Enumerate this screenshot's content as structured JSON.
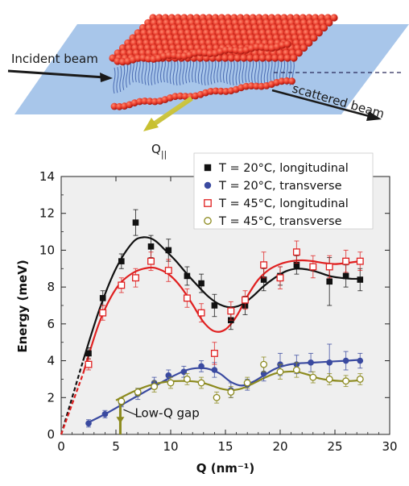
{
  "diagram": {
    "incident_label": "Incident beam",
    "scattered_label": "scattered beam",
    "q_label": "Q",
    "q_subscript": "||"
  },
  "colors": {
    "black": "#111111",
    "blue": "#3a4aa0",
    "red": "#e02020",
    "olive": "#8c8a1e",
    "plot_bg": "#efefef",
    "plane": "#9fc0e8",
    "lipid_head": "#e83a2a",
    "lipid_tail": "#3a5aa8"
  },
  "chart_data": {
    "type": "scatter",
    "xlabel": "Q (nm⁻¹)",
    "ylabel": "Energy (meV)",
    "xlim": [
      0,
      30
    ],
    "ylim": [
      0,
      14
    ],
    "xticks": [
      "0",
      "5",
      "10",
      "15",
      "20",
      "25",
      "30"
    ],
    "yticks": [
      "0",
      "2",
      "4",
      "6",
      "8",
      "10",
      "12",
      "14"
    ],
    "legend_position": "top-right",
    "annotation": "Low-Q gap",
    "annotation_x": 5.4,
    "series": [
      {
        "name": "T = 20°C, longitudinal",
        "color": "#111111",
        "marker": "filled-square",
        "x": [
          2.5,
          3.8,
          5.5,
          6.8,
          8.2,
          9.8,
          11.5,
          12.8,
          14.0,
          15.5,
          16.8,
          18.5,
          20.0,
          21.5,
          24.5,
          26.0,
          27.3
        ],
        "y": [
          4.4,
          7.4,
          9.4,
          11.5,
          10.2,
          10.0,
          8.6,
          8.2,
          7.0,
          6.2,
          7.0,
          8.4,
          8.6,
          9.2,
          8.3,
          8.6,
          8.4
        ],
        "err": [
          0.3,
          0.4,
          0.4,
          0.7,
          0.6,
          0.6,
          0.5,
          0.5,
          0.6,
          0.5,
          0.5,
          0.6,
          0.5,
          0.5,
          1.3,
          0.6,
          0.6
        ],
        "fit_x": [
          0.0,
          2.0,
          3.5,
          5.0,
          6.5,
          7.5,
          8.5,
          9.5,
          10.5,
          11.5,
          12.5,
          13.5,
          14.5,
          15.5,
          16.5,
          17.5,
          18.5,
          19.5,
          20.5,
          21.5,
          22.5,
          23.5,
          24.5,
          25.5,
          26.5,
          27.3
        ],
        "fit_y": [
          0.0,
          4.0,
          6.8,
          9.0,
          10.4,
          10.7,
          10.55,
          10.0,
          9.4,
          8.7,
          8.05,
          7.45,
          7.05,
          6.9,
          7.05,
          7.5,
          8.05,
          8.5,
          8.85,
          9.0,
          8.95,
          8.8,
          8.6,
          8.5,
          8.45,
          8.45
        ],
        "fit_dashed_until": 2.5
      },
      {
        "name": "T = 20°C, transverse",
        "color": "#3a4aa0",
        "marker": "filled-circle",
        "x": [
          2.5,
          4.0,
          5.5,
          7.0,
          8.5,
          9.8,
          11.2,
          12.8,
          14.0,
          15.5,
          17.0,
          18.5,
          20.0,
          21.5,
          22.8,
          24.5,
          26.0,
          27.3
        ],
        "y": [
          0.6,
          1.1,
          1.7,
          2.2,
          2.8,
          3.2,
          3.4,
          3.7,
          3.5,
          2.4,
          2.7,
          3.3,
          3.8,
          3.8,
          3.9,
          3.9,
          4.0,
          4.0
        ],
        "err": [
          0.2,
          0.2,
          0.2,
          0.3,
          0.3,
          0.3,
          0.3,
          0.3,
          0.4,
          0.4,
          0.3,
          0.4,
          0.6,
          0.5,
          0.5,
          1.0,
          0.5,
          0.4
        ],
        "fit_x": [
          2.5,
          4.0,
          5.5,
          7.0,
          8.5,
          10.0,
          11.5,
          12.5,
          13.5,
          14.5,
          15.5,
          16.5,
          17.5,
          18.5,
          19.5,
          20.5,
          21.5,
          23.0,
          24.5,
          26.0,
          27.3
        ],
        "fit_y": [
          0.65,
          1.1,
          1.6,
          2.1,
          2.6,
          3.1,
          3.5,
          3.6,
          3.55,
          3.3,
          2.85,
          2.65,
          2.85,
          3.2,
          3.55,
          3.75,
          3.85,
          3.9,
          3.95,
          4.0,
          4.05
        ]
      },
      {
        "name": "T = 45°C, longitudinal",
        "color": "#e02020",
        "marker": "open-square",
        "x": [
          2.5,
          3.8,
          5.5,
          6.8,
          8.2,
          9.8,
          11.5,
          12.8,
          14.0,
          15.5,
          16.8,
          18.5,
          20.0,
          21.5,
          23.0,
          24.5,
          26.0,
          27.3
        ],
        "y": [
          3.8,
          6.6,
          8.1,
          8.5,
          9.4,
          8.9,
          7.4,
          6.6,
          4.4,
          6.7,
          7.3,
          9.2,
          8.5,
          9.9,
          9.1,
          9.1,
          9.4,
          9.4
        ],
        "err": [
          0.3,
          0.4,
          0.4,
          0.5,
          0.5,
          0.6,
          0.5,
          0.5,
          0.6,
          0.5,
          0.5,
          0.7,
          0.6,
          0.6,
          0.6,
          0.6,
          0.6,
          0.5
        ],
        "fit_x": [
          0.0,
          2.0,
          3.5,
          5.0,
          6.5,
          8.0,
          9.0,
          10.0,
          11.0,
          12.0,
          13.0,
          14.0,
          15.0,
          16.0,
          17.0,
          18.0,
          19.0,
          20.0,
          21.0,
          22.0,
          23.0,
          24.0,
          25.0,
          26.0,
          27.3
        ],
        "fit_y": [
          0.0,
          3.3,
          6.1,
          7.9,
          8.75,
          9.05,
          8.95,
          8.6,
          7.95,
          7.05,
          6.1,
          5.6,
          5.7,
          6.4,
          7.5,
          8.4,
          8.95,
          9.25,
          9.4,
          9.45,
          9.4,
          9.3,
          9.25,
          9.3,
          9.4
        ],
        "fit_dashed_until": 2.5
      },
      {
        "name": "T = 45°C, transverse",
        "color": "#8c8a1e",
        "marker": "open-circle",
        "x": [
          5.5,
          7.0,
          8.5,
          10.0,
          11.5,
          12.8,
          14.2,
          15.5,
          17.0,
          18.5,
          20.0,
          21.5,
          23.0,
          24.5,
          26.0,
          27.3
        ],
        "y": [
          1.8,
          2.3,
          2.6,
          2.8,
          3.0,
          2.8,
          2.0,
          2.3,
          2.8,
          3.8,
          3.4,
          3.5,
          3.1,
          3.0,
          2.9,
          3.0
        ],
        "err": [
          0.2,
          0.2,
          0.3,
          0.3,
          0.3,
          0.3,
          0.3,
          0.3,
          0.3,
          0.4,
          0.4,
          0.4,
          0.3,
          0.3,
          0.3,
          0.3
        ],
        "fit_x": [
          5.0,
          6.5,
          8.0,
          9.5,
          11.0,
          12.5,
          13.5,
          14.5,
          15.5,
          16.5,
          17.5,
          18.5,
          19.5,
          20.5,
          21.5,
          22.5,
          23.5,
          24.5,
          25.5,
          26.5,
          27.3
        ],
        "fit_y": [
          1.85,
          2.3,
          2.65,
          2.85,
          2.9,
          2.85,
          2.7,
          2.5,
          2.4,
          2.5,
          2.75,
          3.05,
          3.3,
          3.4,
          3.4,
          3.25,
          3.05,
          2.95,
          2.9,
          2.9,
          2.95
        ]
      }
    ]
  }
}
